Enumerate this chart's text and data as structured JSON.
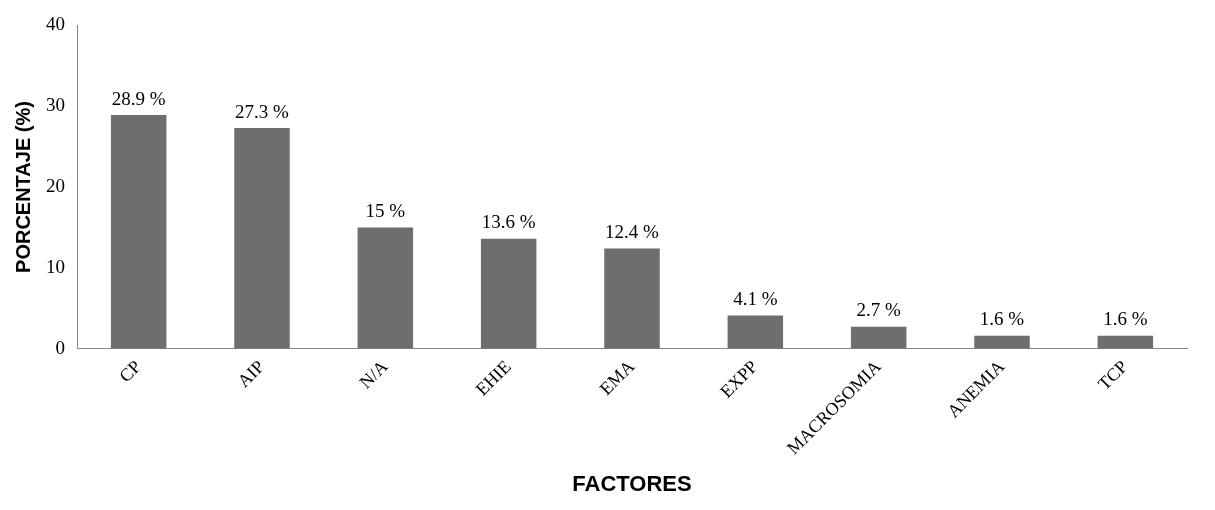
{
  "chart_data": {
    "type": "bar",
    "xlabel": "FACTORES",
    "ylabel": "PORCENTAJE (%)",
    "categories": [
      "CP",
      "AIP",
      "N/A",
      "EHIE",
      "EMA",
      "EXPP",
      "MACROSOMIA",
      "ANEMIA",
      "TCP"
    ],
    "values": [
      28.9,
      27.3,
      15,
      13.6,
      12.4,
      4.1,
      2.7,
      1.6,
      1.6
    ],
    "value_labels": [
      "28.9 %",
      "27.3 %",
      "15 %",
      "13.6 %",
      "12.4 %",
      "4.1 %",
      "2.7 %",
      "1.6 %",
      "1.6 %"
    ],
    "color": "#6e6e6e",
    "ylim": [
      0,
      40
    ],
    "yticks": [
      0,
      10,
      20,
      30,
      40
    ],
    "grid": false,
    "legend": false
  }
}
